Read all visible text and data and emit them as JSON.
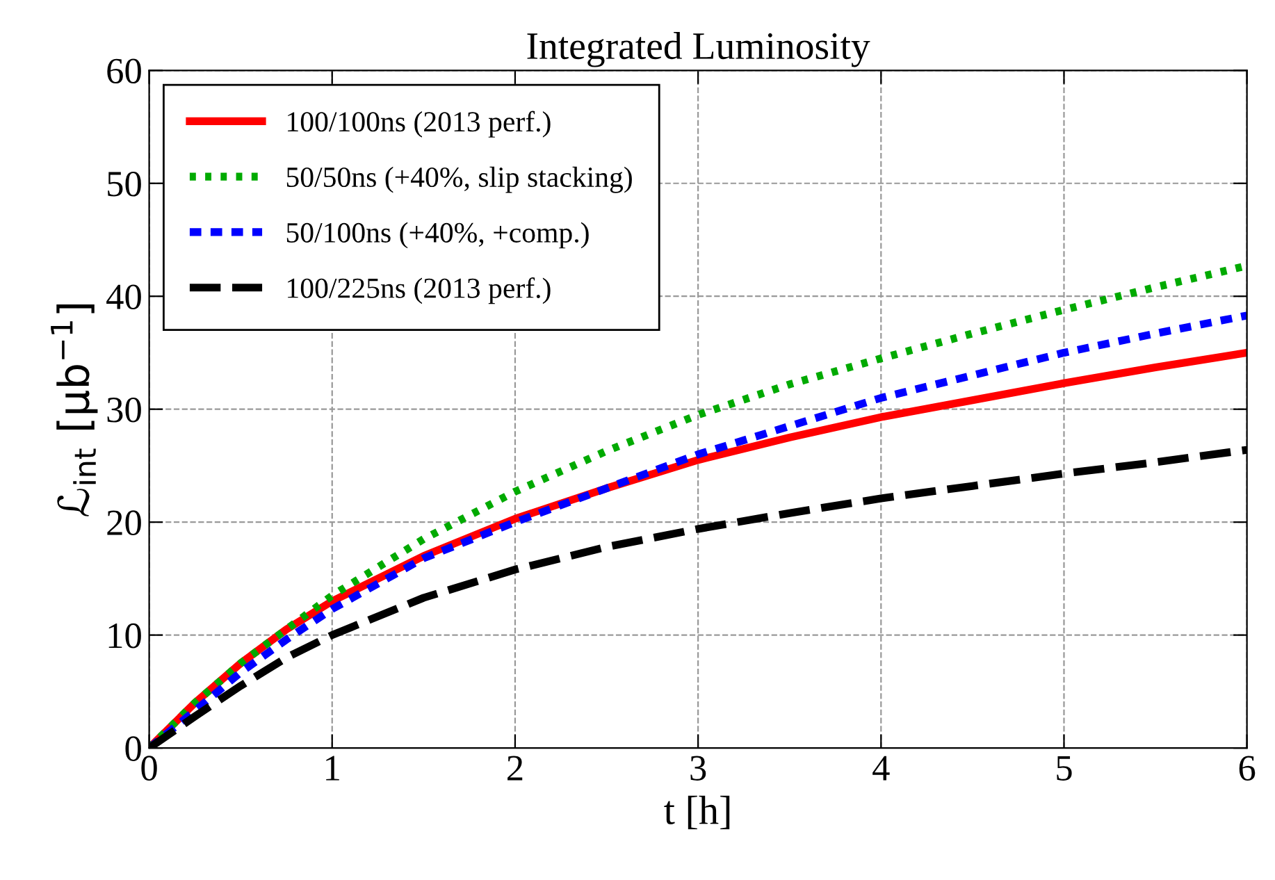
{
  "chart_data": {
    "type": "line",
    "title": "Integrated Luminosity",
    "xlabel": "t [h]",
    "ylabel": "ℒ$_{int}$ [μb$^{−1}$]",
    "x": [
      0,
      0.25,
      0.5,
      0.75,
      1,
      1.5,
      2,
      2.5,
      3,
      3.5,
      4,
      4.5,
      5,
      5.5,
      6
    ],
    "series": [
      {
        "name": "100/100ns (2013 perf.)",
        "color": "#ff0000",
        "line_style": "solid",
        "values": [
          0,
          4,
          7.5,
          10.5,
          13,
          17,
          20.3,
          23,
          25.5,
          27.5,
          29.3,
          30.8,
          32.3,
          33.7,
          35
        ]
      },
      {
        "name": "50/50ns (+40%, slip stacking)",
        "color": "#00aa00",
        "line_style": "dotted",
        "values": [
          0,
          4,
          7.5,
          10.5,
          13.5,
          18.5,
          22.7,
          26.3,
          29.5,
          32.2,
          34.5,
          36.7,
          38.8,
          40.8,
          42.7
        ]
      },
      {
        "name": "50/100ns (+40%, +comp.)",
        "color": "#0000ff",
        "line_style": "dashed",
        "values": [
          0,
          3.3,
          6.7,
          9.6,
          12.3,
          16.8,
          20,
          23,
          26,
          28.5,
          31,
          33,
          35,
          36.7,
          38.3
        ]
      },
      {
        "name": "100/225ns (2013 perf.)",
        "color": "#000000",
        "line_style": "dashed",
        "values": [
          0,
          2.8,
          5.5,
          8,
          10,
          13.3,
          15.8,
          17.8,
          19.4,
          20.8,
          22.1,
          23.2,
          24.3,
          25.3,
          26.4
        ]
      }
    ],
    "xlim": [
      0,
      6
    ],
    "xticks": [
      0,
      1,
      2,
      3,
      4,
      5,
      6
    ],
    "ylim": [
      0,
      60
    ],
    "yticks": [
      0,
      10,
      20,
      30,
      40,
      50,
      60
    ],
    "grid": true,
    "legend": "top left"
  }
}
